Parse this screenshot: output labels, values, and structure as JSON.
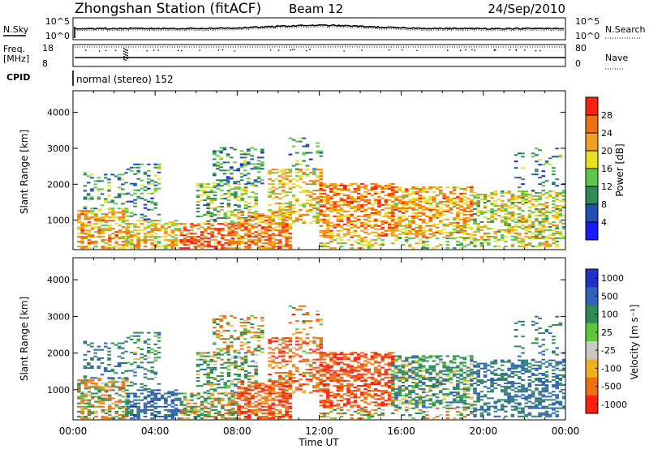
{
  "header": {
    "station": "Zhongshan Station (fitACF)",
    "beam": "Beam 12",
    "date": "24/Sep/2010"
  },
  "top_panels": {
    "nsky_label": "N.Sky",
    "nsky_ticks": [
      "10^5",
      "10^0"
    ],
    "nsearch_label": "N.Search",
    "nsearch_ticks": [
      "10^5",
      "10^0"
    ],
    "freq_label": "Freq.",
    "freq_unit": "[MHz]",
    "freq_ticks": [
      "18",
      "8"
    ],
    "nave_label": "Nave",
    "nave_ticks": [
      "80",
      "0"
    ],
    "cpid_label": "CPID",
    "cpid_text": "normal (stereo) 152"
  },
  "chart_data": [
    {
      "type": "heatmap",
      "title": "",
      "xlabel": "Time UT",
      "ylabel": "Slant Range [km]",
      "x_ticks": [
        "00:00",
        "04:00",
        "08:00",
        "12:00",
        "16:00",
        "20:00",
        "00:00"
      ],
      "xlim_hours": [
        0,
        24
      ],
      "y_ticks": [
        1000,
        2000,
        3000,
        4000
      ],
      "ylim": [
        180,
        4600
      ],
      "colorbar": {
        "label": "Power [dB]",
        "ticks": [
          "4",
          "8",
          "12",
          "16",
          "20",
          "24",
          "28"
        ],
        "range": [
          0,
          30
        ],
        "colors": [
          "#1a1aff",
          "#1f4fb0",
          "#2e8b57",
          "#5fc84a",
          "#e8e020",
          "#f0a020",
          "#f07010",
          "#ff2010"
        ]
      }
    },
    {
      "type": "heatmap",
      "title": "",
      "xlabel": "Time UT",
      "ylabel": "Slant Range [km]",
      "x_ticks": [
        "00:00",
        "04:00",
        "08:00",
        "12:00",
        "16:00",
        "20:00",
        "00:00"
      ],
      "xlim_hours": [
        0,
        24
      ],
      "y_ticks": [
        1000,
        2000,
        3000,
        4000
      ],
      "ylim": [
        180,
        4600
      ],
      "colorbar": {
        "label": "Velocity [m s⁻¹]",
        "ticks": [
          "1000",
          "500",
          "100",
          "25",
          "-25",
          "-100",
          "-500",
          "-1000"
        ],
        "colors": [
          "#2030c8",
          "#2f62b8",
          "#2e8b57",
          "#5cc838",
          "#c8c8c0",
          "#f0b020",
          "#f07010",
          "#ff2010"
        ]
      }
    }
  ],
  "scatter_blobs": [
    {
      "t0": 0.2,
      "t1": 2.6,
      "r0": 200,
      "r1": 1300,
      "dens": 0.55,
      "pw": 22,
      "vel": -30
    },
    {
      "t0": 0.5,
      "t1": 2.6,
      "r0": 1300,
      "r1": 2300,
      "dens": 0.25,
      "pw": 12,
      "vel": 500
    },
    {
      "t0": 2.6,
      "t1": 5.2,
      "r0": 200,
      "r1": 1000,
      "dens": 0.5,
      "pw": 20,
      "vel": 700
    },
    {
      "t0": 2.6,
      "t1": 4.2,
      "r0": 1000,
      "r1": 2600,
      "dens": 0.22,
      "pw": 10,
      "vel": 300
    },
    {
      "t0": 5.2,
      "t1": 8.0,
      "r0": 200,
      "r1": 900,
      "dens": 0.6,
      "pw": 26,
      "vel": 80
    },
    {
      "t0": 6.0,
      "t1": 9.0,
      "r0": 900,
      "r1": 2000,
      "dens": 0.35,
      "pw": 14,
      "vel": 200
    },
    {
      "t0": 6.8,
      "t1": 9.2,
      "r0": 2000,
      "r1": 3000,
      "dens": 0.3,
      "pw": 10,
      "vel": 0
    },
    {
      "t0": 8.0,
      "t1": 10.5,
      "r0": 200,
      "r1": 1200,
      "dens": 0.6,
      "pw": 24,
      "vel": -400
    },
    {
      "t0": 9.5,
      "t1": 12.0,
      "r0": 900,
      "r1": 2400,
      "dens": 0.4,
      "pw": 20,
      "vel": -300
    },
    {
      "t0": 10.5,
      "t1": 12.0,
      "r0": 2400,
      "r1": 3300,
      "dens": 0.15,
      "pw": 10,
      "vel": -200
    },
    {
      "t0": 12.0,
      "t1": 15.5,
      "r0": 500,
      "r1": 2000,
      "dens": 0.55,
      "pw": 24,
      "vel": -450
    },
    {
      "t0": 12.0,
      "t1": 15.0,
      "r0": 200,
      "r1": 500,
      "dens": 0.35,
      "pw": 18,
      "vel": -100
    },
    {
      "t0": 15.5,
      "t1": 19.5,
      "r0": 500,
      "r1": 1900,
      "dens": 0.55,
      "pw": 22,
      "vel": 250
    },
    {
      "t0": 15.5,
      "t1": 19.5,
      "r0": 200,
      "r1": 500,
      "dens": 0.3,
      "pw": 16,
      "vel": 80
    },
    {
      "t0": 19.5,
      "t1": 24.0,
      "r0": 250,
      "r1": 1800,
      "dens": 0.45,
      "pw": 18,
      "vel": 500
    },
    {
      "t0": 21.5,
      "t1": 24.0,
      "r0": 1800,
      "r1": 3000,
      "dens": 0.12,
      "pw": 10,
      "vel": 400
    }
  ]
}
